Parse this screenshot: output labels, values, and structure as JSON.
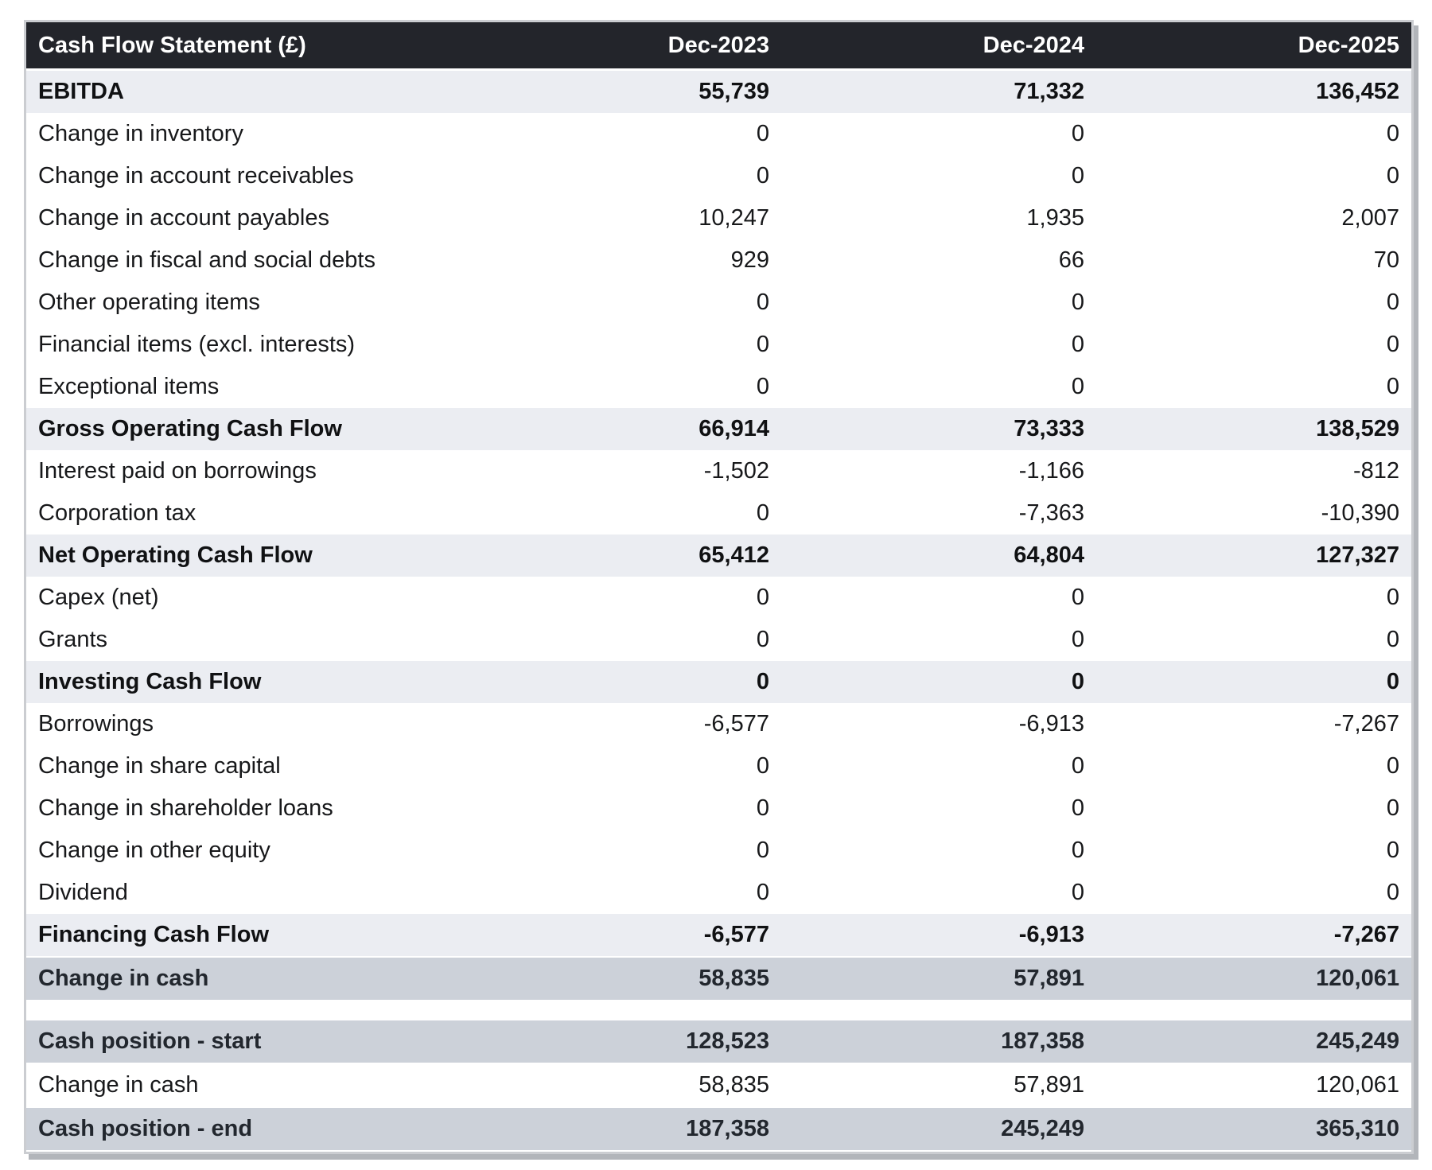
{
  "colors": {
    "header_bg": "#23252b",
    "header_text": "#ffffff",
    "row_text": "#17181a",
    "subtotal_bg": "#ebedf2",
    "highlight_bg": "#ccd1d9",
    "highlight_text": "#22272e",
    "table_border": "#cbcdd1",
    "table_shadow": "#b2b5ba",
    "page_bg": "#ffffff"
  },
  "table": {
    "title": "Cash Flow Statement (£)",
    "columns": [
      "Dec-2023",
      "Dec-2024",
      "Dec-2025"
    ],
    "rows": [
      {
        "label": "EBITDA",
        "values": [
          "55,739",
          "71,332",
          "136,452"
        ],
        "style": "subtotal"
      },
      {
        "label": "Change in inventory",
        "values": [
          "0",
          "0",
          "0"
        ],
        "style": "normal"
      },
      {
        "label": "Change in account receivables",
        "values": [
          "0",
          "0",
          "0"
        ],
        "style": "normal"
      },
      {
        "label": "Change in account payables",
        "values": [
          "10,247",
          "1,935",
          "2,007"
        ],
        "style": "normal"
      },
      {
        "label": "Change in fiscal and social debts",
        "values": [
          "929",
          "66",
          "70"
        ],
        "style": "normal"
      },
      {
        "label": "Other operating items",
        "values": [
          "0",
          "0",
          "0"
        ],
        "style": "normal"
      },
      {
        "label": "Financial items (excl. interests)",
        "values": [
          "0",
          "0",
          "0"
        ],
        "style": "normal"
      },
      {
        "label": "Exceptional items",
        "values": [
          "0",
          "0",
          "0"
        ],
        "style": "normal"
      },
      {
        "label": "Gross Operating Cash Flow",
        "values": [
          "66,914",
          "73,333",
          "138,529"
        ],
        "style": "subtotal"
      },
      {
        "label": "Interest paid on borrowings",
        "values": [
          "-1,502",
          "-1,166",
          "-812"
        ],
        "style": "normal"
      },
      {
        "label": "Corporation tax",
        "values": [
          "0",
          "-7,363",
          "-10,390"
        ],
        "style": "normal"
      },
      {
        "label": "Net Operating Cash Flow",
        "values": [
          "65,412",
          "64,804",
          "127,327"
        ],
        "style": "subtotal"
      },
      {
        "label": "Capex (net)",
        "values": [
          "0",
          "0",
          "0"
        ],
        "style": "normal"
      },
      {
        "label": "Grants",
        "values": [
          "0",
          "0",
          "0"
        ],
        "style": "normal"
      },
      {
        "label": "Investing Cash Flow",
        "values": [
          "0",
          "0",
          "0"
        ],
        "style": "subtotal"
      },
      {
        "label": "Borrowings",
        "values": [
          "-6,577",
          "-6,913",
          "-7,267"
        ],
        "style": "normal"
      },
      {
        "label": "Change in share capital",
        "values": [
          "0",
          "0",
          "0"
        ],
        "style": "normal"
      },
      {
        "label": "Change in shareholder loans",
        "values": [
          "0",
          "0",
          "0"
        ],
        "style": "normal"
      },
      {
        "label": "Change in other equity",
        "values": [
          "0",
          "0",
          "0"
        ],
        "style": "normal"
      },
      {
        "label": "Dividend",
        "values": [
          "0",
          "0",
          "0"
        ],
        "style": "normal"
      },
      {
        "label": "Financing Cash Flow",
        "values": [
          "-6,577",
          "-6,913",
          "-7,267"
        ],
        "style": "subtotal"
      },
      {
        "label": "Change in cash",
        "values": [
          "58,835",
          "57,891",
          "120,061"
        ],
        "style": "highlight"
      },
      {
        "label": "",
        "values": [
          "",
          "",
          ""
        ],
        "style": "spacer"
      },
      {
        "label": "Cash position - start",
        "values": [
          "128,523",
          "187,358",
          "245,249"
        ],
        "style": "highlight"
      },
      {
        "label": "Change in cash",
        "values": [
          "58,835",
          "57,891",
          "120,061"
        ],
        "style": "normal"
      },
      {
        "label": "Cash position - end",
        "values": [
          "187,358",
          "245,249",
          "365,310"
        ],
        "style": "highlight"
      }
    ]
  }
}
